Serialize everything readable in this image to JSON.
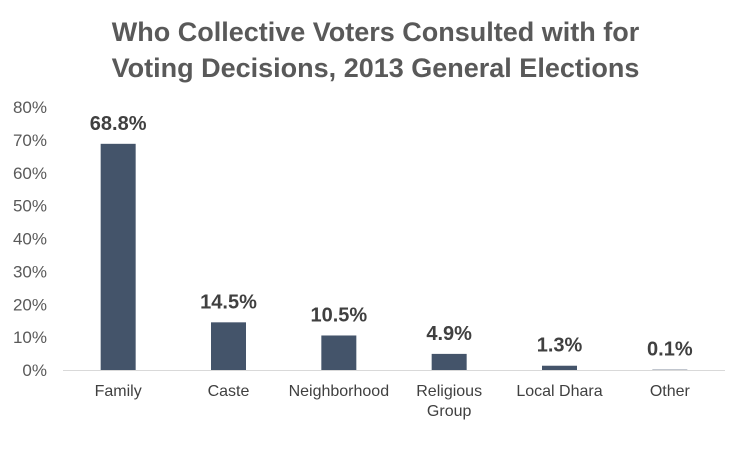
{
  "chart_data": {
    "type": "bar",
    "title_lines": [
      "Who Collective Voters Consulted with for",
      "Voting Decisions, 2013 General Elections"
    ],
    "categories": [
      [
        "Family"
      ],
      [
        "Caste"
      ],
      [
        "Neighborhood"
      ],
      [
        "Religious",
        "Group"
      ],
      [
        "Local Dhara"
      ],
      [
        "Other"
      ]
    ],
    "values": [
      68.8,
      14.5,
      10.5,
      4.9,
      1.3,
      0.1
    ],
    "data_labels": [
      "68.8%",
      "14.5%",
      "10.5%",
      "4.9%",
      "1.3%",
      "0.1%"
    ],
    "ylim": [
      0,
      80
    ],
    "yticks": [
      0,
      10,
      20,
      30,
      40,
      50,
      60,
      70,
      80
    ],
    "ytick_labels": [
      "0%",
      "10%",
      "20%",
      "30%",
      "40%",
      "50%",
      "60%",
      "70%",
      "80%"
    ],
    "gridlines": false,
    "legend": "none",
    "bar_color": "#44546a"
  }
}
